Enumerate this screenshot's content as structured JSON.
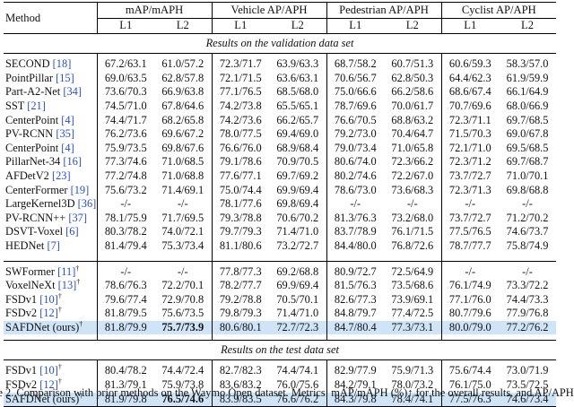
{
  "header": {
    "method": "Method",
    "groups": [
      "mAP/mAPH",
      "Vehicle AP/APH",
      "Pedestrian AP/APH",
      "Cyclist AP/APH"
    ],
    "levels": [
      "L1",
      "L2",
      "L1",
      "L2",
      "L1",
      "L2",
      "L1",
      "L2"
    ]
  },
  "sections": {
    "validation": "Results on the validation data set",
    "test": "Results on the test data set"
  },
  "validation_rows": [
    {
      "name": "SECOND",
      "ref": "18",
      "dagger": "",
      "values": [
        "67.2/63.1",
        "61.0/57.2",
        "72.3/71.7",
        "63.9/63.3",
        "68.7/58.2",
        "60.7/51.3",
        "60.6/59.3",
        "58.3/57.0"
      ]
    },
    {
      "name": "PointPillar",
      "ref": "15",
      "dagger": "",
      "values": [
        "69.0/63.5",
        "62.8/57.8",
        "72.1/71.5",
        "63.6/63.1",
        "70.6/56.7",
        "62.8/50.3",
        "64.4/62.3",
        "61.9/59.9"
      ]
    },
    {
      "name": "Part-A2-Net",
      "ref": "34",
      "dagger": "",
      "values": [
        "73.6/70.3",
        "66.9/63.8",
        "77.1/76.5",
        "68.5/68.0",
        "75.0/66.6",
        "66.2/58.6",
        "68.6/67.4",
        "66.1/64.9"
      ]
    },
    {
      "name": "SST",
      "ref": "21",
      "dagger": "",
      "values": [
        "74.5/71.0",
        "67.8/64.6",
        "74.2/73.8",
        "65.5/65.1",
        "78.7/69.6",
        "70.0/61.7",
        "70.7/69.6",
        "68.0/66.9"
      ]
    },
    {
      "name": "CenterPoint",
      "ref": "4",
      "dagger": "",
      "values": [
        "74.4/71.7",
        "68.2/65.8",
        "74.2/73.6",
        "66.2/65.7",
        "76.6/70.5",
        "68.8/63.2",
        "72.3/71.1",
        "69.7/68.5"
      ]
    },
    {
      "name": "PV-RCNN",
      "ref": "35",
      "dagger": "",
      "values": [
        "76.2/73.6",
        "69.6/67.2",
        "78.0/77.5",
        "69.4/69.0",
        "79.2/73.0",
        "70.4/64.7",
        "71.5/70.3",
        "69.0/67.8"
      ]
    },
    {
      "name": "CenterPoint",
      "ref": "4",
      "dagger": "",
      "values": [
        "75.9/73.5",
        "69.8/67.6",
        "76.6/76.0",
        "68.9/68.4",
        "79.0/73.4",
        "71.0/65.8",
        "72.1/71.0",
        "69.5/68.5"
      ]
    },
    {
      "name": "PillarNet-34",
      "ref": "16",
      "dagger": "",
      "values": [
        "77.3/74.6",
        "71.0/68.5",
        "79.1/78.6",
        "70.9/70.5",
        "80.6/74.0",
        "72.3/66.2",
        "72.3/71.2",
        "69.7/68.7"
      ]
    },
    {
      "name": "AFDetV2",
      "ref": "23",
      "dagger": "",
      "values": [
        "77.2/74.8",
        "71.0/68.8",
        "77.6/77.1",
        "69.7/69.2",
        "80.2/74.6",
        "72.2/67.0",
        "73.7/72.7",
        "71.0/70.1"
      ]
    },
    {
      "name": "CenterFormer",
      "ref": "19",
      "dagger": "",
      "values": [
        "75.6/73.2",
        "71.4/69.1",
        "75.0/74.4",
        "69.9/69.4",
        "78.6/73.0",
        "73.6/68.3",
        "72.3/71.3",
        "69.8/68.8"
      ]
    },
    {
      "name": "LargeKernel3D",
      "ref": "36",
      "dagger": "",
      "values": [
        "-/-",
        "-/-",
        "78.1/77.6",
        "69.8/69.4",
        "-/-",
        "-/-",
        "-/-",
        "-/-"
      ]
    },
    {
      "name": "PV-RCNN++",
      "ref": "37",
      "dagger": "",
      "values": [
        "78.1/75.9",
        "71.7/69.5",
        "79.3/78.8",
        "70.6/70.2",
        "81.3/76.3",
        "73.2/68.0",
        "73.7/72.7",
        "71.2/70.2"
      ]
    },
    {
      "name": "DSVT-Voxel",
      "ref": "6",
      "dagger": "",
      "values": [
        "80.3/78.2",
        "74.0/72.1",
        "79.7/79.3",
        "71.4/71.0",
        "83.7/78.9",
        "76.1/71.5",
        "77.5/76.5",
        "74.6/73.7"
      ]
    },
    {
      "name": "HEDNet",
      "ref": "7",
      "dagger": "",
      "values": [
        "81.4/79.4",
        "75.3/73.4",
        "81.1/80.6",
        "73.2/72.7",
        "84.4/80.0",
        "76.8/72.6",
        "78.7/77.7",
        "75.8/74.9"
      ]
    }
  ],
  "validation_rows_b": [
    {
      "name": "SWFormer",
      "ref": "11",
      "dagger": "†",
      "values": [
        "-/-",
        "-/-",
        "77.8/77.3",
        "69.2/68.8",
        "80.9/72.7",
        "72.5/64.9",
        "-/-",
        "-/-"
      ]
    },
    {
      "name": "VoxelNeXt",
      "ref": "13",
      "dagger": "†",
      "values": [
        "78.6/76.3",
        "72.2/70.1",
        "78.2/77.7",
        "69.9/69.4",
        "81.5/76.3",
        "73.5/68.6",
        "76.1/74.9",
        "73.3/72.2"
      ]
    },
    {
      "name": "FSDv1",
      "ref": "10",
      "dagger": "†",
      "values": [
        "79.6/77.4",
        "72.9/70.8",
        "79.2/78.8",
        "70.5/70.1",
        "82.6/77.3",
        "73.9/69.1",
        "77.1/76.0",
        "74.4/73.3"
      ]
    },
    {
      "name": "FSDv2",
      "ref": "12",
      "dagger": "†",
      "values": [
        "81.8/79.5",
        "75.6/73.5",
        "79.8/79.3",
        "71.4/71.0",
        "84.8/79.7",
        "77.4/72.5",
        "80.7/79.6",
        "77.9/76.8"
      ]
    }
  ],
  "validation_ours": {
    "name": "SAFDNet (ours)",
    "dagger": "†",
    "values": [
      "81.8/79.9",
      "75.7/73.9",
      "80.6/80.1",
      "72.7/72.3",
      "84.7/80.4",
      "77.3/73.1",
      "80.0/79.0",
      "77.2/76.2"
    ],
    "bold": [
      false,
      true,
      false,
      false,
      false,
      false,
      false,
      false
    ]
  },
  "test_rows": [
    {
      "name": "FSDv1",
      "ref": "10",
      "dagger": "†",
      "values": [
        "80.4/78.2",
        "74.4/72.4",
        "82.7/82.3",
        "74.4/74.1",
        "82.9/77.9",
        "75.9/71.3",
        "75.6/74.4",
        "73.0/71.9"
      ]
    },
    {
      "name": "FSDv2",
      "ref": "12",
      "dagger": "†",
      "values": [
        "81.3/79.1",
        "75.9/73.8",
        "83.6/83.2",
        "76.0/75.6",
        "84.2/79.1",
        "78.0/73.2",
        "76.1/75.0",
        "73.5/72.5"
      ]
    }
  ],
  "test_ours": {
    "name": "SAFDNet (ours)",
    "dagger": "†",
    "values": [
      "81.9/79.8",
      "76.5/74.6",
      "83.9/83.5",
      "76.6/76.2",
      "84.3/79.8",
      "78.4/74.1",
      "77.5/76.3",
      "74.6/73.4"
    ],
    "bold": [
      false,
      true,
      false,
      false,
      false,
      false,
      false,
      false
    ]
  },
  "caption": "le 2. Comparison with prior methods on the Waymo Open dataset. Metrics: mAP/mAPH (%)↑ for the overall results, and AP/APH"
}
